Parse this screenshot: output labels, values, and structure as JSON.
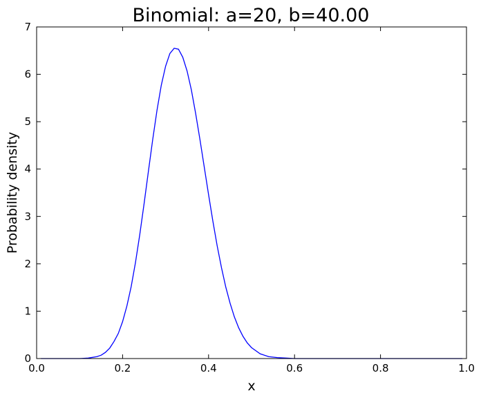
{
  "chart_data": {
    "type": "line",
    "title": "Binomial: a=20, b=40.00",
    "xlabel": "x",
    "ylabel": "Probability density",
    "xlim": [
      0.0,
      1.0
    ],
    "ylim": [
      0,
      7
    ],
    "xticks": [
      "0.0",
      "0.2",
      "0.4",
      "0.6",
      "0.8",
      "1.0"
    ],
    "yticks": [
      "0",
      "1",
      "2",
      "3",
      "4",
      "5",
      "6",
      "7"
    ],
    "grid": false,
    "line_color": "#0000ff",
    "series": [
      {
        "x": [
          0.01,
          0.05,
          0.1,
          0.12,
          0.14,
          0.15,
          0.16,
          0.17,
          0.18,
          0.19,
          0.2,
          0.21,
          0.22,
          0.23,
          0.24,
          0.25,
          0.26,
          0.27,
          0.28,
          0.29,
          0.3,
          0.31,
          0.32,
          0.33,
          0.34,
          0.35,
          0.36,
          0.37,
          0.38,
          0.39,
          0.4,
          0.41,
          0.42,
          0.43,
          0.44,
          0.45,
          0.46,
          0.47,
          0.48,
          0.49,
          0.5,
          0.52,
          0.54,
          0.56,
          0.58,
          0.6,
          0.65,
          0.7,
          0.8,
          0.9,
          0.99
        ],
        "y": [
          0.0,
          0.0,
          0.0,
          0.01,
          0.04,
          0.07,
          0.13,
          0.22,
          0.36,
          0.53,
          0.78,
          1.11,
          1.52,
          2.03,
          2.62,
          3.27,
          3.95,
          4.62,
          5.24,
          5.77,
          6.17,
          6.44,
          6.55,
          6.53,
          6.36,
          6.07,
          5.67,
          5.17,
          4.62,
          4.04,
          3.46,
          2.9,
          2.38,
          1.92,
          1.51,
          1.17,
          0.88,
          0.65,
          0.47,
          0.33,
          0.23,
          0.1,
          0.04,
          0.02,
          0.01,
          0.0,
          0.0,
          0.0,
          0.0,
          0.0,
          0.0
        ]
      }
    ]
  }
}
